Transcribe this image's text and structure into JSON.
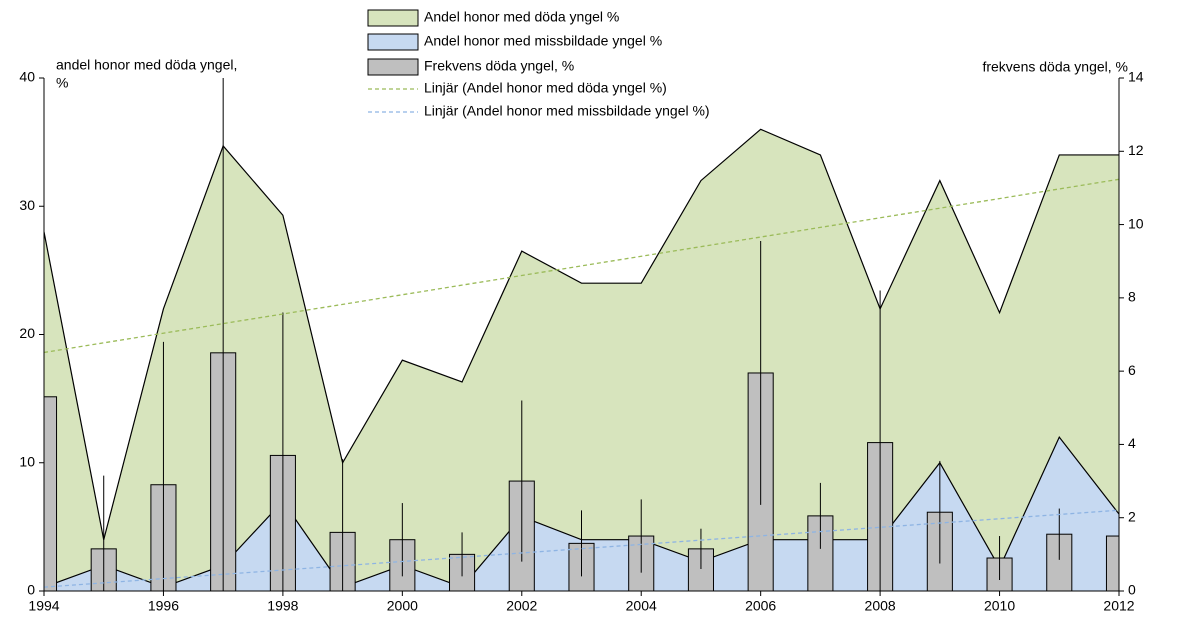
{
  "chart_data": {
    "type": "combo",
    "x": [
      1994,
      1995,
      1996,
      1997,
      1998,
      1999,
      2000,
      2001,
      2002,
      2003,
      2004,
      2005,
      2006,
      2007,
      2008,
      2009,
      2010,
      2011,
      2012
    ],
    "xlim": [
      1994,
      2012
    ],
    "xticks": [
      1994,
      1996,
      1998,
      2000,
      2002,
      2004,
      2006,
      2008,
      2010,
      2012
    ],
    "ylim": [
      0,
      40
    ],
    "yticks": [
      0,
      10,
      20,
      30,
      40
    ],
    "y2lim": [
      0,
      14
    ],
    "y2ticks": [
      0,
      2,
      4,
      6,
      8,
      10,
      12,
      14
    ],
    "y_label": [
      "andel honor med döda yngel,",
      "%"
    ],
    "y2_label": "frekvens döda yngel, %",
    "series": [
      {
        "name": "Andel honor med döda yngel %",
        "type": "area",
        "color": "#d7e4bd",
        "values": [
          28,
          4,
          22,
          34.7,
          29.3,
          10,
          18,
          16.3,
          26.5,
          24,
          24,
          32,
          36,
          34,
          22,
          32,
          21.7,
          34,
          34
        ]
      },
      {
        "name": "Andel honor med missbildade yngel %",
        "type": "area",
        "color": "#c6d9f1",
        "values": [
          0.3,
          2,
          0.3,
          2,
          7,
          0.3,
          2,
          0.3,
          5.8,
          4,
          4,
          2.3,
          4,
          4,
          4,
          10,
          1.8,
          12,
          6
        ]
      },
      {
        "name": "Frekvens döda yngel, %",
        "type": "bar",
        "axis": "y2",
        "color": "#bfbfbf",
        "values": [
          5.3,
          1.15,
          2.9,
          6.5,
          3.7,
          1.6,
          1.4,
          1.0,
          3.0,
          1.3,
          1.5,
          1.15,
          5.95,
          2.05,
          4.05,
          2.15,
          0.9,
          1.55,
          1.5
        ],
        "errors": [
          null,
          2.0,
          3.9,
          7.5,
          3.9,
          2.0,
          1.0,
          0.6,
          2.2,
          0.9,
          1.0,
          0.55,
          3.6,
          0.9,
          4.15,
          1.4,
          0.6,
          0.7,
          0.7
        ]
      },
      {
        "name": "Linjär (Andel honor med döda yngel %)",
        "type": "line",
        "dashed": true,
        "color": "#9bbb59",
        "x": [
          1994,
          2012
        ],
        "values": [
          18.6,
          32.1
        ]
      },
      {
        "name": "Linjär (Andel honor med missbildade yngel %)",
        "type": "line",
        "dashed": true,
        "color": "#8eb4e3",
        "x": [
          1994,
          2012
        ],
        "values": [
          0.3,
          6.3
        ]
      }
    ]
  }
}
